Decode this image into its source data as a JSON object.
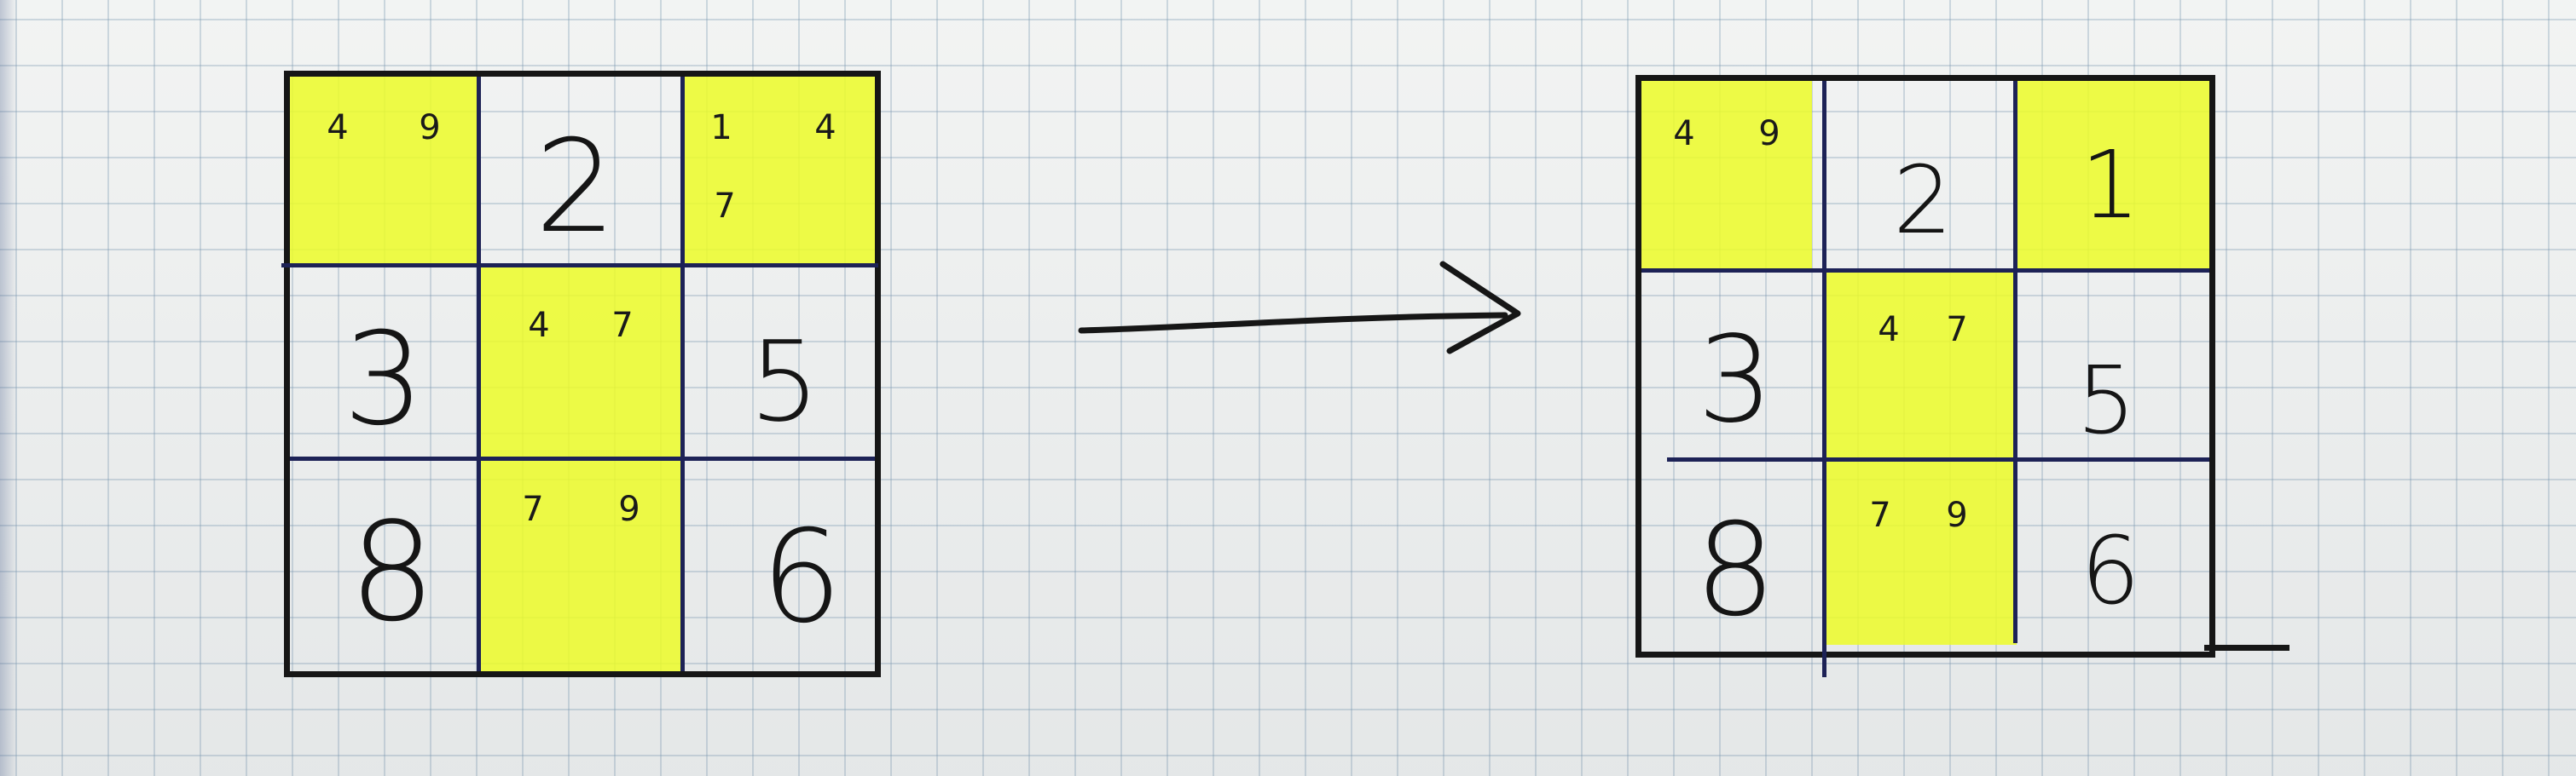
{
  "grid_before": {
    "cells": [
      {
        "big": "",
        "cands": [
          "4",
          "9"
        ],
        "highlight": true
      },
      {
        "big": "2",
        "cands": [],
        "highlight": false
      },
      {
        "big": "",
        "cands": [
          "1",
          "4",
          "7"
        ],
        "highlight": true
      },
      {
        "big": "3",
        "cands": [],
        "highlight": false
      },
      {
        "big": "",
        "cands": [
          "4",
          "7"
        ],
        "highlight": true
      },
      {
        "big": "5",
        "cands": [],
        "highlight": false
      },
      {
        "big": "8",
        "cands": [],
        "highlight": false
      },
      {
        "big": "",
        "cands": [
          "7",
          "9"
        ],
        "highlight": true
      },
      {
        "big": "6",
        "cands": [],
        "highlight": false
      }
    ]
  },
  "grid_after": {
    "cells": [
      {
        "big": "",
        "cands": [
          "4",
          "9"
        ],
        "highlight": true
      },
      {
        "big": "2",
        "cands": [],
        "highlight": false
      },
      {
        "big": "1",
        "cands": [],
        "highlight": true
      },
      {
        "big": "3",
        "cands": [],
        "highlight": false
      },
      {
        "big": "",
        "cands": [
          "4",
          "7"
        ],
        "highlight": true
      },
      {
        "big": "5",
        "cands": [],
        "highlight": false
      },
      {
        "big": "8",
        "cands": [],
        "highlight": false
      },
      {
        "big": "",
        "cands": [
          "7",
          "9"
        ],
        "highlight": true
      },
      {
        "big": "6",
        "cands": [],
        "highlight": false
      }
    ]
  },
  "colors": {
    "highlight": "#ecfc28",
    "ink": "#151515",
    "grid_line": "#1d2256",
    "paper": "#eef0ef"
  }
}
